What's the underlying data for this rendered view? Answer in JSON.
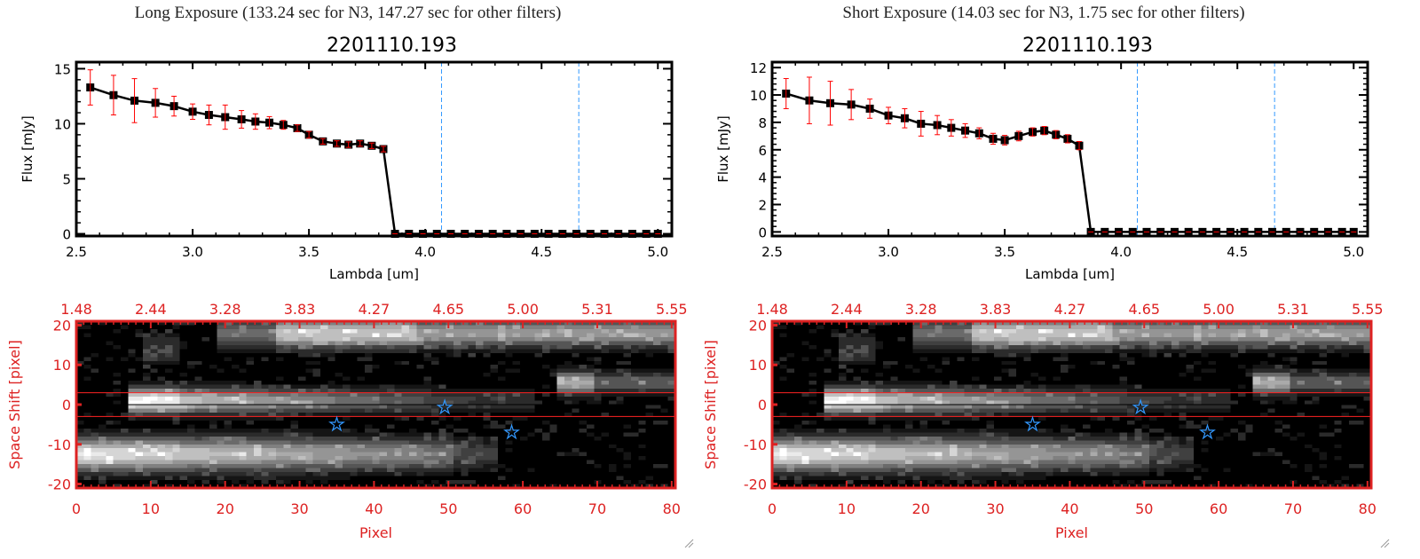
{
  "panels": [
    {
      "title": "Long Exposure (133.24 sec for N3, 147.27 sec for other filters)",
      "spectrum": {
        "type": "line",
        "title": "2201110.193",
        "xlabel": "Lambda [um]",
        "ylabel": "Flux [mJy]",
        "xlim": [
          2.5,
          5.06
        ],
        "ylim": [
          -0.2,
          15.6
        ],
        "xticks": [
          "2.5",
          "3.0",
          "3.5",
          "4.0",
          "4.5",
          "5.0"
        ],
        "yticks": [
          "0",
          "5",
          "10",
          "15"
        ],
        "x": [
          2.56,
          2.66,
          2.75,
          2.84,
          2.92,
          3.0,
          3.07,
          3.14,
          3.21,
          3.27,
          3.33,
          3.39,
          3.45,
          3.5,
          3.56,
          3.62,
          3.67,
          3.72,
          3.77,
          3.82,
          3.87,
          3.93,
          3.99,
          4.05,
          4.11,
          4.17,
          4.23,
          4.29,
          4.35,
          4.41,
          4.47,
          4.53,
          4.59,
          4.65,
          4.71,
          4.77,
          4.83,
          4.89,
          4.95,
          5.0
        ],
        "y": [
          13.3,
          12.6,
          12.1,
          11.9,
          11.6,
          11.1,
          10.8,
          10.6,
          10.4,
          10.2,
          10.1,
          9.9,
          9.6,
          9.0,
          8.4,
          8.2,
          8.1,
          8.2,
          8.0,
          7.7,
          0,
          0,
          0,
          0,
          0,
          0,
          0,
          0,
          0,
          0,
          0,
          0,
          0,
          0,
          0,
          0,
          0,
          0,
          0,
          0
        ],
        "yerr": [
          1.6,
          1.8,
          2.0,
          1.3,
          0.9,
          0.7,
          0.9,
          1.1,
          0.8,
          0.7,
          0.55,
          0.4,
          0.3,
          0.3,
          0.25,
          0.25,
          0.25,
          0.25,
          0.25,
          0.25,
          0,
          0,
          0,
          0,
          0,
          0,
          0,
          0,
          0,
          0,
          0,
          0,
          0,
          0,
          0,
          0,
          0,
          0,
          0,
          0
        ],
        "vlines": [
          4.07,
          4.66
        ],
        "colors": {
          "line": "#000000",
          "error": "#ff0000",
          "vline": "#3399ff"
        }
      },
      "image": {
        "type": "heatmap",
        "xlabel": "Pixel",
        "ylabel": "Space Shift [pixel]",
        "xlim": [
          0,
          80.5
        ],
        "ylim": [
          -21,
          21
        ],
        "xticks": [
          "0",
          "10",
          "20",
          "30",
          "40",
          "50",
          "60",
          "70",
          "80"
        ],
        "yticks": [
          "20",
          "10",
          "0",
          "-10",
          "-20"
        ],
        "top_ticks": [
          "1.48",
          "2.44",
          "3.28",
          "3.83",
          "4.27",
          "4.65",
          "5.00",
          "5.31",
          "5.55"
        ],
        "hlines_red": [
          3,
          -3
        ],
        "hline_black": 0,
        "stars": [
          [
            35,
            -5
          ],
          [
            49.5,
            -0.7
          ],
          [
            58.5,
            -7
          ]
        ],
        "colors": {
          "axis": "#dd2222",
          "star": "#3399ff"
        }
      }
    },
    {
      "title": "Short Exposure (14.03 sec for N3, 1.75 sec for other filters)",
      "spectrum": {
        "type": "line",
        "title": "2201110.193",
        "xlabel": "Lambda [um]",
        "ylabel": "Flux [mJy]",
        "xlim": [
          2.5,
          5.06
        ],
        "ylim": [
          -0.3,
          12.4
        ],
        "xticks": [
          "2.5",
          "3.0",
          "3.5",
          "4.0",
          "4.5",
          "5.0"
        ],
        "yticks": [
          "0",
          "2",
          "4",
          "6",
          "8",
          "10",
          "12"
        ],
        "x": [
          2.56,
          2.66,
          2.75,
          2.84,
          2.92,
          3.0,
          3.07,
          3.14,
          3.21,
          3.27,
          3.33,
          3.39,
          3.45,
          3.5,
          3.56,
          3.62,
          3.67,
          3.72,
          3.77,
          3.82,
          3.87,
          3.93,
          3.99,
          4.05,
          4.11,
          4.17,
          4.23,
          4.29,
          4.35,
          4.41,
          4.47,
          4.53,
          4.59,
          4.65,
          4.71,
          4.77,
          4.83,
          4.89,
          4.95,
          5.0
        ],
        "y": [
          10.1,
          9.6,
          9.4,
          9.3,
          9.0,
          8.5,
          8.3,
          7.9,
          7.8,
          7.6,
          7.4,
          7.2,
          6.8,
          6.7,
          7.0,
          7.3,
          7.4,
          7.1,
          6.8,
          6.3,
          0,
          0,
          0,
          0,
          0,
          0,
          0,
          0,
          0,
          0,
          0,
          0,
          0,
          0,
          0,
          0,
          0,
          0,
          0,
          0
        ],
        "yerr": [
          1.1,
          1.7,
          1.6,
          1.1,
          0.7,
          0.6,
          0.7,
          0.9,
          0.7,
          0.6,
          0.5,
          0.4,
          0.4,
          0.35,
          0.35,
          0.3,
          0.3,
          0.3,
          0.3,
          0.3,
          0,
          0,
          0,
          0,
          0,
          0,
          0,
          0,
          0,
          0,
          0,
          0,
          0,
          0,
          0,
          0,
          0,
          0,
          0,
          0
        ],
        "vlines": [
          4.07,
          4.66
        ],
        "colors": {
          "line": "#000000",
          "error": "#ff0000",
          "vline": "#3399ff"
        }
      },
      "image": {
        "type": "heatmap",
        "xlabel": "Pixel",
        "ylabel": "Space Shift [pixel]",
        "xlim": [
          0,
          80.5
        ],
        "ylim": [
          -21,
          21
        ],
        "xticks": [
          "0",
          "10",
          "20",
          "30",
          "40",
          "50",
          "60",
          "70",
          "80"
        ],
        "yticks": [
          "20",
          "10",
          "0",
          "-10",
          "-20"
        ],
        "top_ticks": [
          "1.48",
          "2.44",
          "3.28",
          "3.83",
          "4.27",
          "4.65",
          "5.00",
          "5.31",
          "5.55"
        ],
        "hlines_red": [
          3,
          -3
        ],
        "hline_black": 0,
        "stars": [
          [
            35,
            -5
          ],
          [
            49.5,
            -0.7
          ],
          [
            58.5,
            -7
          ]
        ],
        "colors": {
          "axis": "#dd2222",
          "star": "#3399ff"
        }
      }
    }
  ]
}
